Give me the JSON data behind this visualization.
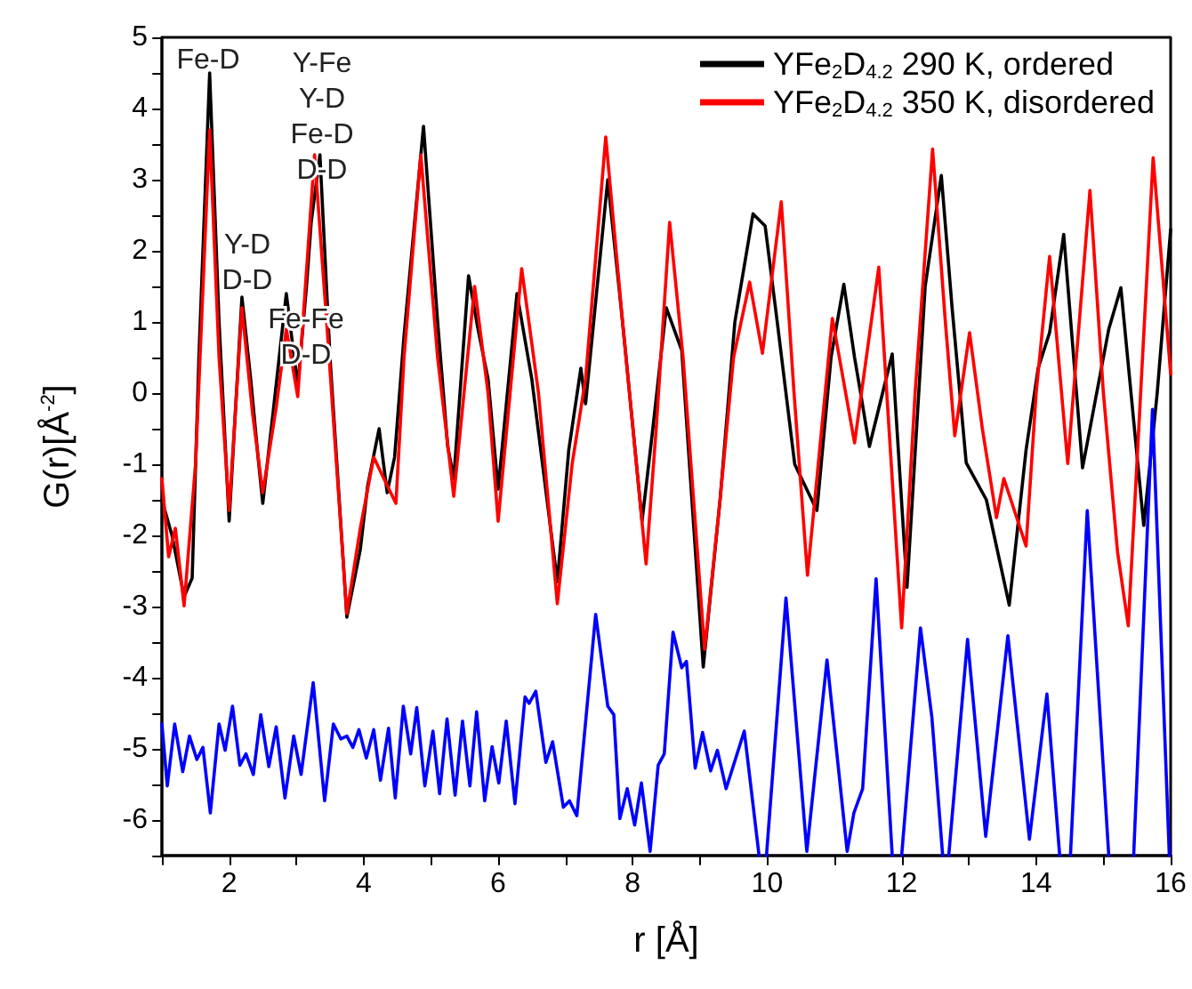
{
  "chart_data": {
    "type": "line",
    "xlabel": "r [Å]",
    "ylabel": "G(r)[Å$^{-2}$]",
    "xlim": [
      1,
      16
    ],
    "ylim": [
      -6.5,
      5
    ],
    "xticks": [
      {
        "value": 1,
        "label": null
      },
      2,
      {
        "value": 3,
        "label": null
      },
      4,
      {
        "value": 5,
        "label": null
      },
      6,
      {
        "value": 7,
        "label": null
      },
      8,
      {
        "value": 9,
        "label": null
      },
      10,
      {
        "value": 11,
        "label": null
      },
      12,
      {
        "value": 13,
        "label": null
      },
      14,
      {
        "value": 15,
        "label": null
      },
      16
    ],
    "yticks": [
      {
        "value": -6.5,
        "label": null
      },
      -6,
      {
        "value": -5.5,
        "label": null
      },
      -5,
      {
        "value": -4.5,
        "label": null
      },
      -4,
      {
        "value": -3.5,
        "label": null
      },
      -3,
      {
        "value": -2.5,
        "label": null
      },
      -2,
      {
        "value": -1.5,
        "label": null
      },
      -1,
      {
        "value": -0.5,
        "label": null
      },
      0,
      {
        "value": 0.5,
        "label": null
      },
      1,
      {
        "value": 1.5,
        "label": null
      },
      2,
      {
        "value": 2.5,
        "label": null
      },
      3,
      {
        "value": 3.5,
        "label": null
      },
      4,
      {
        "value": 4.5,
        "label": null
      },
      5
    ],
    "grid": false,
    "legend": "top right",
    "marker": "none",
    "line_style": "solid",
    "annotations": [
      "Fe-D",
      "Y-Fe\nY-D\nFe-D\nD-D",
      "Y-D\nD-D",
      "Fe-Fe\nD-D"
    ],
    "series": [
      {
        "name": "YFe$_{2}$D$_{4.2}$ 290 K, ordered",
        "color": "#000000",
        "x": [
          1.0,
          1.15,
          1.33,
          1.45,
          1.55,
          1.71,
          1.85,
          2.0,
          2.19,
          2.32,
          2.43,
          2.5,
          2.65,
          2.85,
          3.02,
          3.15,
          3.22,
          3.35,
          3.5,
          3.75,
          3.95,
          4.06,
          4.23,
          4.35,
          4.46,
          4.6,
          4.89,
          5.1,
          5.25,
          5.34,
          5.56,
          5.7,
          5.85,
          6.0,
          6.28,
          6.5,
          6.88,
          7.05,
          7.23,
          7.3,
          7.63,
          7.85,
          8.14,
          8.3,
          8.5,
          8.73,
          9.05,
          9.3,
          9.52,
          9.79,
          9.97,
          10.15,
          10.41,
          10.74,
          10.95,
          11.14,
          11.3,
          11.39,
          11.52,
          11.86,
          12.08,
          12.35,
          12.59,
          12.75,
          12.96,
          13.26,
          13.6,
          13.85,
          14.03,
          14.2,
          14.41,
          14.69,
          15.08,
          15.26,
          15.6,
          15.8,
          16.0
        ],
        "values": [
          -1.5,
          -2.0,
          -2.86,
          -2.6,
          0.5,
          4.5,
          1.0,
          -1.8,
          1.35,
          0.2,
          -0.9,
          -1.55,
          -0.3,
          1.4,
          0.1,
          1.5,
          2.4,
          3.35,
          0.5,
          -3.15,
          -2.2,
          -1.3,
          -0.5,
          -1.4,
          -0.9,
          0.8,
          3.75,
          1.0,
          -0.75,
          -1.2,
          1.65,
          0.9,
          0.2,
          -1.35,
          1.4,
          0.2,
          -2.65,
          -0.8,
          0.35,
          -0.15,
          3.0,
          1.0,
          -1.8,
          -0.5,
          1.2,
          0.6,
          -3.85,
          -1.5,
          1.0,
          2.52,
          2.35,
          1.0,
          -1.0,
          -1.65,
          0.5,
          1.53,
          0.5,
          0.0,
          -0.75,
          0.55,
          -2.73,
          1.5,
          3.06,
          1.2,
          -0.98,
          -1.5,
          -2.98,
          -0.8,
          0.35,
          0.85,
          2.23,
          -1.05,
          0.9,
          1.48,
          -1.86,
          0.0,
          2.3
        ]
      },
      {
        "name": "YFe$_{2}$D$_{4.2}$ 350 K, disordered",
        "color": "#ff0000",
        "x": [
          1.0,
          1.1,
          1.2,
          1.33,
          1.5,
          1.71,
          1.85,
          2.0,
          2.19,
          2.35,
          2.5,
          2.7,
          2.85,
          3.02,
          3.27,
          3.45,
          3.75,
          3.95,
          4.15,
          4.3,
          4.48,
          4.6,
          4.85,
          5.1,
          5.34,
          5.65,
          5.85,
          6.0,
          6.35,
          6.6,
          6.88,
          7.1,
          7.3,
          7.6,
          7.85,
          8.2,
          8.35,
          8.55,
          8.75,
          9.07,
          9.3,
          9.5,
          9.74,
          9.93,
          10.21,
          10.4,
          10.6,
          10.97,
          11.3,
          11.66,
          12.0,
          12.2,
          12.46,
          12.65,
          12.79,
          13.01,
          13.2,
          13.41,
          13.52,
          13.85,
          14.0,
          14.2,
          14.47,
          14.8,
          15.0,
          15.21,
          15.37,
          15.74,
          16.0
        ],
        "values": [
          -1.2,
          -2.3,
          -1.9,
          -2.99,
          -1.0,
          3.7,
          0.5,
          -1.65,
          1.2,
          -0.3,
          -1.4,
          -0.2,
          0.9,
          -0.05,
          3.35,
          1.0,
          -3.1,
          -1.9,
          -0.9,
          -1.2,
          -1.55,
          0.5,
          3.35,
          0.5,
          -1.45,
          1.5,
          0.0,
          -1.8,
          1.75,
          0.0,
          -2.96,
          -1.0,
          0.2,
          3.6,
          1.0,
          -2.4,
          -0.5,
          2.4,
          0.5,
          -3.6,
          -1.5,
          0.5,
          1.56,
          0.56,
          2.69,
          0.0,
          -2.56,
          1.05,
          -0.7,
          1.77,
          -3.3,
          0.0,
          3.43,
          1.0,
          -0.6,
          0.85,
          -0.5,
          -1.75,
          -1.2,
          -2.15,
          0.0,
          1.92,
          -0.99,
          2.85,
          0.0,
          -2.23,
          -3.27,
          3.31,
          0.27
        ]
      },
      {
        "color": "#0000ff",
        "x": [
          1.0,
          1.08,
          1.19,
          1.31,
          1.41,
          1.52,
          1.61,
          1.72,
          1.85,
          1.94,
          2.05,
          2.16,
          2.25,
          2.36,
          2.47,
          2.59,
          2.7,
          2.83,
          2.96,
          3.07,
          3.25,
          3.42,
          3.55,
          3.66,
          3.75,
          3.84,
          3.93,
          4.04,
          4.15,
          4.25,
          4.37,
          4.47,
          4.59,
          4.7,
          4.79,
          4.91,
          5.03,
          5.13,
          5.24,
          5.36,
          5.47,
          5.58,
          5.68,
          5.8,
          5.91,
          6.01,
          6.12,
          6.25,
          6.4,
          6.46,
          6.56,
          6.71,
          6.81,
          6.97,
          7.06,
          7.17,
          7.45,
          7.63,
          7.72,
          7.81,
          7.92,
          8.03,
          8.13,
          8.26,
          8.38,
          8.47,
          8.6,
          8.73,
          8.8,
          8.93,
          9.04,
          9.16,
          9.26,
          9.39,
          9.66,
          9.88,
          9.9,
          9.99,
          10.28,
          10.59,
          10.89,
          11.19,
          11.29,
          11.42,
          11.62,
          11.86,
          11.9,
          12.0,
          12.28,
          12.45,
          12.61,
          12.66,
          12.7,
          12.98,
          13.25,
          13.58,
          13.9,
          14.16,
          14.35,
          14.4,
          14.51,
          14.76,
          15.08,
          15.2,
          15.45,
          15.73,
          15.98
        ],
        "values": [
          -4.65,
          -5.52,
          -4.65,
          -5.32,
          -4.82,
          -5.15,
          -4.98,
          -5.9,
          -4.65,
          -5.02,
          -4.4,
          -5.23,
          -5.07,
          -5.36,
          -4.52,
          -5.25,
          -4.69,
          -5.69,
          -4.82,
          -5.36,
          -4.07,
          -5.73,
          -4.65,
          -4.86,
          -4.82,
          -4.98,
          -4.73,
          -5.13,
          -4.73,
          -5.44,
          -4.71,
          -5.69,
          -4.4,
          -5.07,
          -4.42,
          -5.52,
          -4.75,
          -5.63,
          -4.58,
          -5.65,
          -4.61,
          -5.52,
          -4.48,
          -5.73,
          -4.97,
          -5.48,
          -4.61,
          -5.77,
          -4.27,
          -4.36,
          -4.19,
          -5.19,
          -4.9,
          -5.82,
          -5.73,
          -5.94,
          -3.11,
          -4.4,
          -4.52,
          -5.98,
          -5.56,
          -6.07,
          -5.48,
          -6.44,
          -5.23,
          -5.07,
          -3.36,
          -3.86,
          -3.77,
          -5.27,
          -4.77,
          -5.31,
          -5.02,
          -5.56,
          -4.75,
          -6.5,
          null,
          -6.5,
          -2.88,
          -6.44,
          -3.75,
          -6.44,
          -5.9,
          -5.56,
          -2.61,
          -6.5,
          null,
          -6.5,
          -3.3,
          -4.56,
          -6.5,
          null,
          -6.5,
          -3.46,
          -6.23,
          -3.41,
          -6.27,
          -4.23,
          -6.5,
          null,
          -6.5,
          -1.65,
          -6.5,
          null,
          -6.5,
          -0.23,
          -6.5
        ]
      }
    ]
  }
}
